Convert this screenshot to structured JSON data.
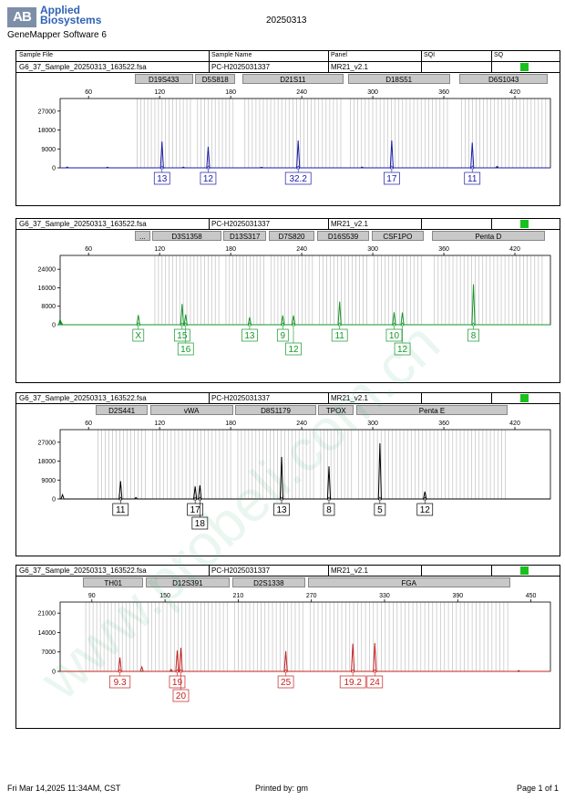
{
  "header": {
    "brand_logo": "AB",
    "brand_line1": "Applied",
    "brand_line2": "Biosystems",
    "software": "GeneMapper Software 6",
    "date": "20250313",
    "columns": [
      "Sample File",
      "Sample Name",
      "Panel",
      "SQI",
      "SQ"
    ]
  },
  "sample": {
    "file": "G6_37_Sample_20250313_163522.fsa",
    "name": "PC-H2025031337",
    "panel": "MR21_v2.1",
    "sqi_color": "#19c11d"
  },
  "footer": {
    "left": "Fri Mar 14,2025 11:34AM, CST",
    "center": "Printed by: gm",
    "right": "Page 1 of 1"
  },
  "watermark": "www.probeli.com.cn",
  "chart_data": [
    {
      "type": "line",
      "color": "#1a1aa8",
      "xlim": [
        36,
        450
      ],
      "xticks": [
        60,
        120,
        180,
        240,
        300,
        360,
        420
      ],
      "ylim": [
        0,
        33000
      ],
      "yticks": [
        0,
        9000,
        18000,
        27000
      ],
      "loci": [
        {
          "name": "D19S433",
          "start": 99,
          "end": 148
        },
        {
          "name": "D5S818",
          "start": 150,
          "end": 184
        },
        {
          "name": "D21S11",
          "start": 190,
          "end": 275
        },
        {
          "name": "D18S51",
          "start": 279,
          "end": 365
        },
        {
          "name": "D6S1043",
          "start": 373,
          "end": 448
        }
      ],
      "peaks": [
        {
          "x": 122,
          "y": 12500,
          "label": "13"
        },
        {
          "x": 161,
          "y": 10000,
          "label": "12"
        },
        {
          "x": 237,
          "y": 13000,
          "label": "32.2"
        },
        {
          "x": 316,
          "y": 13000,
          "label": "17"
        },
        {
          "x": 384,
          "y": 12000,
          "label": "11"
        }
      ],
      "noise": [
        {
          "x": 42,
          "y": 400
        },
        {
          "x": 76,
          "y": 300
        },
        {
          "x": 140,
          "y": 350
        },
        {
          "x": 206,
          "y": 300
        },
        {
          "x": 291,
          "y": 400
        },
        {
          "x": 405,
          "y": 700
        }
      ]
    },
    {
      "type": "line",
      "color": "#15962a",
      "xlim": [
        36,
        450
      ],
      "xticks": [
        60,
        120,
        180,
        240,
        300,
        360,
        420
      ],
      "ylim": [
        0,
        30000
      ],
      "yticks": [
        0,
        8000,
        16000,
        24000
      ],
      "loci": [
        {
          "name": "...",
          "start": 99,
          "end": 112
        },
        {
          "name": "D3S1358",
          "start": 114,
          "end": 172
        },
        {
          "name": "D13S317",
          "start": 174,
          "end": 210
        },
        {
          "name": "D7S820",
          "start": 212,
          "end": 251
        },
        {
          "name": "D16S539",
          "start": 253,
          "end": 297
        },
        {
          "name": "CSF1PO",
          "start": 299,
          "end": 343
        },
        {
          "name": "Penta D",
          "start": 350,
          "end": 445
        }
      ],
      "peaks": [
        {
          "x": 102,
          "y": 4200,
          "label": "X"
        },
        {
          "x": 139,
          "y": 9000,
          "label": "15"
        },
        {
          "x": 142,
          "y": 4400,
          "label": "16"
        },
        {
          "x": 196,
          "y": 3200,
          "label": "13"
        },
        {
          "x": 224,
          "y": 4000,
          "label": "9"
        },
        {
          "x": 233,
          "y": 4000,
          "label": "12"
        },
        {
          "x": 272,
          "y": 10000,
          "label": "11"
        },
        {
          "x": 318,
          "y": 5400,
          "label": "10"
        },
        {
          "x": 325,
          "y": 5300,
          "label": "12"
        },
        {
          "x": 385,
          "y": 17500,
          "label": "8"
        }
      ],
      "noise": [
        {
          "x": 36,
          "y": 2500
        },
        {
          "x": 37,
          "y": 1000
        }
      ]
    },
    {
      "type": "line",
      "color": "#000000",
      "xlim": [
        36,
        450
      ],
      "xticks": [
        60,
        120,
        180,
        240,
        300,
        360,
        420
      ],
      "ylim": [
        0,
        33000
      ],
      "yticks": [
        0,
        9000,
        18000,
        27000
      ],
      "loci": [
        {
          "name": "D2S441",
          "start": 66,
          "end": 110
        },
        {
          "name": "vWA",
          "start": 112,
          "end": 182
        },
        {
          "name": "D8S1179",
          "start": 184,
          "end": 252
        },
        {
          "name": "TPOX",
          "start": 254,
          "end": 284
        },
        {
          "name": "Penta E",
          "start": 286,
          "end": 414
        }
      ],
      "peaks": [
        {
          "x": 87,
          "y": 8500,
          "label": "11"
        },
        {
          "x": 150,
          "y": 6000,
          "label": "17"
        },
        {
          "x": 154,
          "y": 6500,
          "label": "18"
        },
        {
          "x": 223,
          "y": 20000,
          "label": "13"
        },
        {
          "x": 263,
          "y": 15500,
          "label": "8"
        },
        {
          "x": 306,
          "y": 26500,
          "label": "5"
        },
        {
          "x": 344,
          "y": 3500,
          "label": "12"
        }
      ],
      "noise": [
        {
          "x": 38,
          "y": 2000
        },
        {
          "x": 100,
          "y": 700
        }
      ]
    },
    {
      "type": "line",
      "color": "#c42020",
      "xlim": [
        64,
        466
      ],
      "xticks": [
        90,
        150,
        210,
        270,
        330,
        390,
        450
      ],
      "ylim": [
        0,
        25000
      ],
      "yticks": [
        0,
        7000,
        14000,
        21000
      ],
      "loci": [
        {
          "name": "TH01",
          "start": 83,
          "end": 132
        },
        {
          "name": "D12S391",
          "start": 134,
          "end": 203
        },
        {
          "name": "D2S1338",
          "start": 205,
          "end": 265
        },
        {
          "name": "FGA",
          "start": 267,
          "end": 433
        }
      ],
      "peaks": [
        {
          "x": 113,
          "y": 5000,
          "label": "9.3"
        },
        {
          "x": 160,
          "y": 7500,
          "label": "19"
        },
        {
          "x": 163,
          "y": 8500,
          "label": "20"
        },
        {
          "x": 249,
          "y": 7300,
          "label": "25"
        },
        {
          "x": 304,
          "y": 10000,
          "label": "19.2"
        },
        {
          "x": 322,
          "y": 10200,
          "label": "24"
        }
      ],
      "noise": [
        {
          "x": 131,
          "y": 1600
        },
        {
          "x": 155,
          "y": 700
        },
        {
          "x": 440,
          "y": 300
        }
      ]
    }
  ]
}
